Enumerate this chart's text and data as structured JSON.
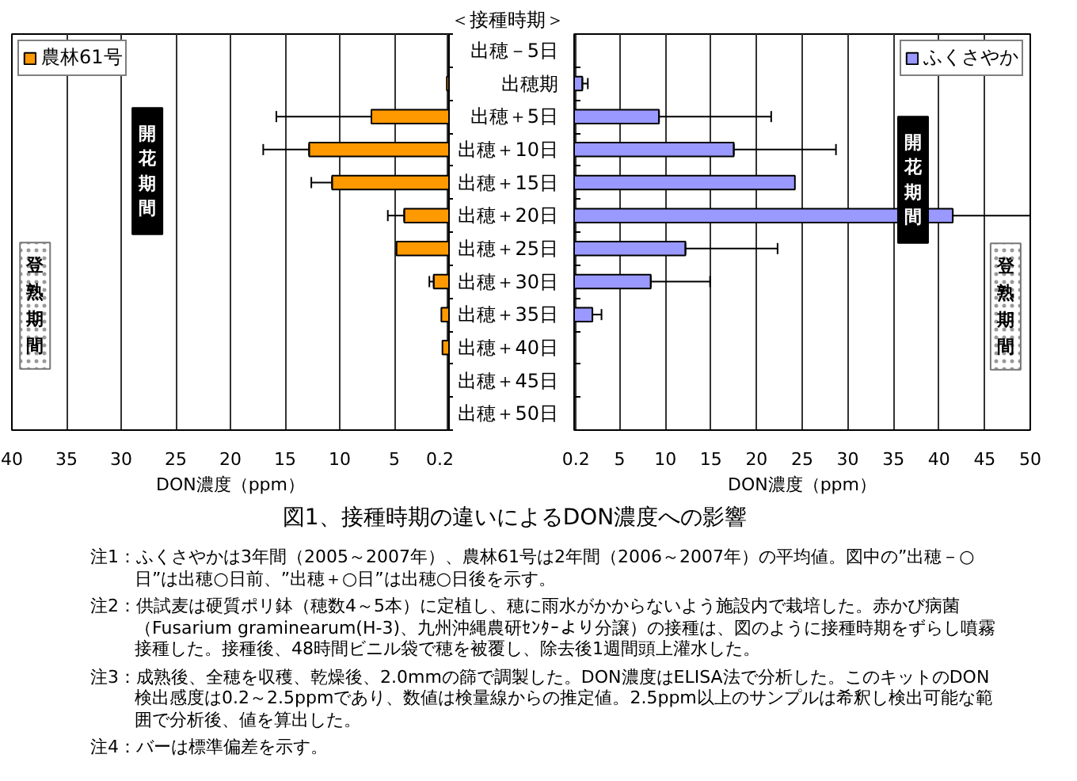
{
  "chart_data": [
    {
      "type": "bar",
      "orientation": "horizontal",
      "categories": [
        null,
        null,
        null,
        null,
        null,
        null,
        null,
        null,
        null,
        null,
        null,
        null
      ],
      "series": [
        {
          "name": "農林61号",
          "color": "#ff9900",
          "values": [
            null,
            0.2,
            7.1,
            12.8,
            10.7,
            4.1,
            4.8,
            1.4,
            0.7,
            0.6,
            null,
            null
          ],
          "errors": [
            null,
            null,
            [
              7.1,
              15.8
            ],
            [
              12.8,
              17.0
            ],
            [
              10.7,
              12.6
            ],
            [
              4.1,
              5.6
            ],
            null,
            [
              1.4,
              1.8
            ],
            null,
            null,
            null,
            null
          ]
        }
      ],
      "xlabel": "DON濃度（ppm）",
      "xlim": [
        40,
        0
      ],
      "xticks": [
        40,
        35,
        30,
        25,
        20,
        15,
        10,
        5,
        0.2
      ],
      "grid": "x",
      "legend": "top left",
      "tick_labels": "x",
      "annotations": [
        "開花期間",
        "登熟期間"
      ]
    },
    {
      "type": "bar",
      "orientation": "horizontal",
      "categories": [
        "出穂－5日",
        "出穂期",
        "出穂＋5日",
        "出穂＋10日",
        "出穂＋15日",
        "出穂＋20日",
        "出穂＋25日",
        "出穂＋30日",
        "出穂＋35日",
        "出穂＋40日",
        "出穂＋45日",
        "出穂＋50日"
      ],
      "ylabel": "＜接種時期＞",
      "series": [
        {
          "name": "ふくさやか",
          "color": "#9999ff",
          "values": [
            null,
            0.9,
            9.3,
            17.5,
            24.2,
            41.5,
            12.2,
            8.4,
            2.0,
            null,
            null,
            null
          ],
          "errors": [
            null,
            [
              0.9,
              1.5
            ],
            [
              9.3,
              21.6
            ],
            [
              17.5,
              28.7
            ],
            null,
            [
              41.5,
              50
            ],
            [
              12.2,
              22.3
            ],
            [
              8.4,
              14.9
            ],
            [
              2.0,
              3.0
            ],
            null,
            null,
            null
          ]
        }
      ],
      "xlabel": "DON濃度（ppm）",
      "xlim": [
        0,
        50
      ],
      "xticks": [
        0.2,
        5,
        10,
        15,
        20,
        25,
        30,
        35,
        40,
        45,
        50
      ],
      "grid": "x",
      "legend": "top right",
      "annotations": [
        "開花期間",
        "登熟期間"
      ]
    },
    {
      "type": "other",
      "title": "図1、接種時期の違いによるDON濃度への影響",
      "annotations": [
        "注1：ふくさやかは3年間（2005～2007年）、農林61号は2年間（2006～2007年）の平均値。図中の”出穂－○日”は出穂○日前、”出穂＋○日”は出穂○日後を示す。",
        "注2：供試麦は硬質ポリ鉢（穂数4～5本）に定植し、穂に雨水がかからないよう施設内で栽培した。赤かび病菌（Fusarium graminearum(H-3)、九州沖縄農研ｾﾝﾀｰより分譲）の接種は、図のように接種時期をずらし噴霧接種した。接種後、48時間ビニル袋で穂を被覆し、除去後1週間頭上灌水した。",
        "注3：成熟後、全穂を収穫、乾燥後、2.0mmの篩で調製した。DON濃度はELISA法で分析した。このキットのDON検出感度は0.2～2.5ppmであり、数値は検量線からの推定値。2.5ppm以上のサンプルは希釈し検出可能な範囲で分析後、値を算出した。",
        "注4：バーは標準偏差を示す。"
      ]
    }
  ]
}
